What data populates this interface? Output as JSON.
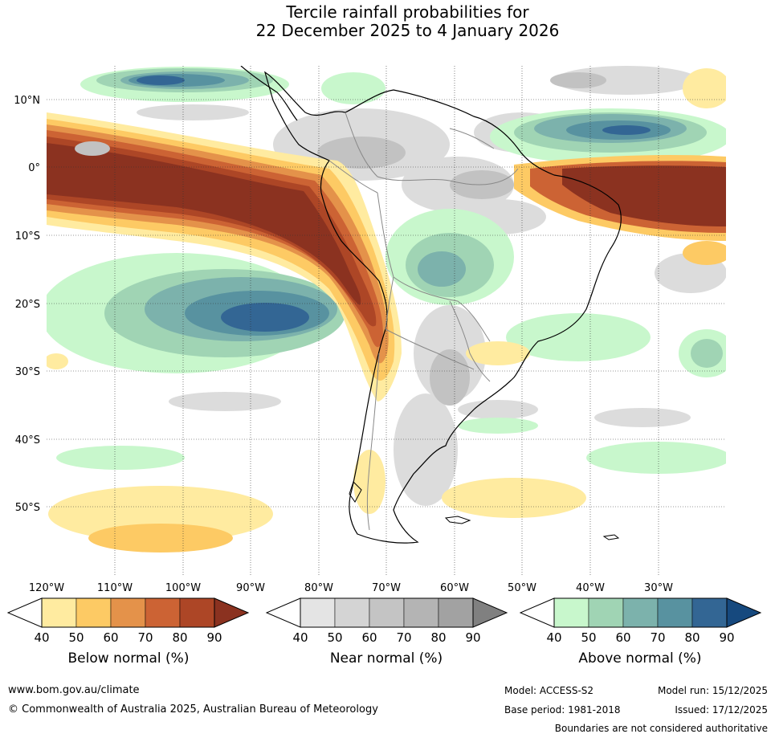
{
  "title": {
    "line1": "Tercile rainfall probabilities for",
    "line2": "22 December 2025 to 4 January 2026"
  },
  "map": {
    "region": "South America",
    "lat_ticks": [
      {
        "value": 10,
        "label": "10°N"
      },
      {
        "value": 0,
        "label": "0°"
      },
      {
        "value": -10,
        "label": "10°S"
      },
      {
        "value": -20,
        "label": "20°S"
      },
      {
        "value": -30,
        "label": "30°S"
      },
      {
        "value": -40,
        "label": "40°S"
      },
      {
        "value": -50,
        "label": "50°S"
      }
    ],
    "lon_ticks": [
      {
        "value": -120,
        "label": "120°W"
      },
      {
        "value": -110,
        "label": "110°W"
      },
      {
        "value": -100,
        "label": "100°W"
      },
      {
        "value": -90,
        "label": "90°W"
      },
      {
        "value": -80,
        "label": "80°W"
      },
      {
        "value": -70,
        "label": "70°W"
      },
      {
        "value": -60,
        "label": "60°W"
      },
      {
        "value": -50,
        "label": "50°W"
      },
      {
        "value": -40,
        "label": "40°W"
      },
      {
        "value": -30,
        "label": "30°W"
      }
    ],
    "extent": {
      "lon_min": -120,
      "lon_max": -20,
      "lat_min": -60,
      "lat_max": 15
    }
  },
  "colorbars": [
    {
      "title": "Below normal (%)",
      "ticks": [
        "40",
        "50",
        "60",
        "70",
        "80",
        "90"
      ],
      "colors": [
        "#ffffff",
        "#ffeba0",
        "#fdca64",
        "#e4924a",
        "#cc6334",
        "#ad4626",
        "#8b3220"
      ]
    },
    {
      "title": "Near normal (%)",
      "ticks": [
        "40",
        "50",
        "60",
        "70",
        "80",
        "90"
      ],
      "colors": [
        "#ffffff",
        "#e4e4e4",
        "#d4d4d4",
        "#c4c4c4",
        "#b4b4b4",
        "#a2a2a2",
        "#808080"
      ]
    },
    {
      "title": "Above normal (%)",
      "ticks": [
        "40",
        "50",
        "60",
        "70",
        "80",
        "90"
      ],
      "colors": [
        "#ffffff",
        "#c8f7cc",
        "#a0d4b4",
        "#7cb2ac",
        "#5892a0",
        "#336694",
        "#16497e"
      ]
    }
  ],
  "footer": {
    "url": "www.bom.gov.au/climate",
    "copyright": "© Commonwealth of Australia 2025, Australian Bureau of Meteorology",
    "model": "Model: ACCESS-S2",
    "model_run": "Model run: 15/12/2025",
    "base_period": "Base period: 1981-2018",
    "issued": "Issued: 17/12/2025",
    "disclaimer": "Boundaries are not considered authoritative"
  }
}
